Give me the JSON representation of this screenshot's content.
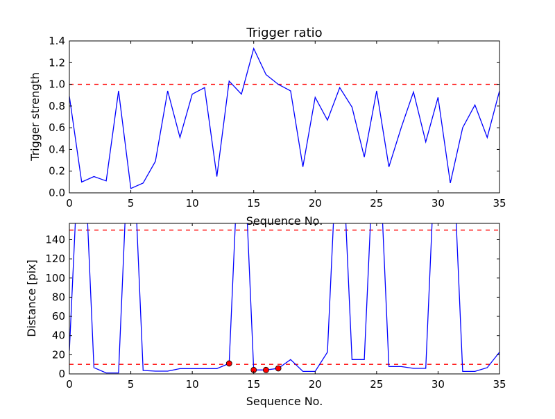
{
  "chart_data": [
    {
      "type": "line",
      "title": "Trigger ratio",
      "xlabel": "Sequence No.",
      "ylabel": "Trigger strength",
      "xlim": [
        0,
        35
      ],
      "ylim": [
        0,
        1.4
      ],
      "xticks": [
        0,
        5,
        10,
        15,
        20,
        25,
        30,
        35
      ],
      "yticks": [
        0.0,
        0.2,
        0.4,
        0.6,
        0.8,
        1.0,
        1.2,
        1.4
      ],
      "ytick_labels": [
        "0.0",
        "0.2",
        "0.4",
        "0.6",
        "0.8",
        "1.0",
        "1.2",
        "1.4"
      ],
      "series": [
        {
          "name": "trigger strength",
          "color": "#0000ff",
          "x": [
            0,
            1,
            2,
            3,
            4,
            5,
            6,
            7,
            8,
            9,
            10,
            11,
            12,
            13,
            14,
            15,
            16,
            17,
            18,
            19,
            20,
            21,
            22,
            23,
            24,
            25,
            26,
            27,
            28,
            29,
            30,
            31,
            32,
            33,
            34,
            35
          ],
          "values": [
            0.89,
            0.1,
            0.15,
            0.11,
            0.94,
            0.04,
            0.09,
            0.29,
            0.94,
            0.51,
            0.91,
            0.97,
            0.15,
            1.03,
            0.91,
            1.33,
            1.09,
            1.0,
            0.94,
            0.24,
            0.88,
            0.67,
            0.97,
            0.79,
            0.33,
            0.94,
            0.24,
            0.6,
            0.93,
            0.47,
            0.88,
            0.09,
            0.6,
            0.81,
            0.51,
            0.94
          ]
        }
      ],
      "hlines": [
        {
          "value": 1.0,
          "color": "#ff0000",
          "style": "dashed"
        }
      ],
      "grid": false
    },
    {
      "type": "line",
      "title": "",
      "xlabel": "Sequence No.",
      "ylabel": "Distance [pix]",
      "xlim": [
        0,
        35
      ],
      "ylim": [
        0,
        157
      ],
      "xticks": [
        0,
        5,
        10,
        15,
        20,
        25,
        30,
        35
      ],
      "yticks": [
        0,
        20,
        40,
        60,
        80,
        100,
        120,
        140
      ],
      "ytick_labels": [
        "0",
        "20",
        "40",
        "60",
        "80",
        "100",
        "120",
        "140"
      ],
      "series": [
        {
          "name": "distance",
          "color": "#0000ff",
          "x": [
            0,
            1,
            2,
            3,
            4,
            5,
            6,
            7,
            8,
            9,
            10,
            11,
            12,
            13,
            14,
            15,
            16,
            17,
            18,
            19,
            20,
            21,
            22,
            23,
            24,
            25,
            26,
            27,
            28,
            29,
            30,
            31,
            32,
            33,
            34,
            35
          ],
          "values": [
            24,
            300,
            6.5,
            1,
            1,
            300,
            3.6,
            2.9,
            2.9,
            5.5,
            5.5,
            5.5,
            5.5,
            10.9,
            300,
            4.1,
            4.1,
            5.8,
            15,
            2.6,
            2.6,
            22.7,
            300,
            15,
            15,
            300,
            7.7,
            7.7,
            5.8,
            5.8,
            300,
            300,
            2.6,
            2.6,
            6.5,
            22.7
          ]
        }
      ],
      "markers": {
        "color": "#ff0000",
        "x": [
          13,
          15,
          16,
          17
        ],
        "values": [
          10.9,
          4.1,
          4.1,
          5.8
        ]
      },
      "hlines": [
        {
          "value": 10,
          "color": "#ff0000",
          "style": "dashed"
        },
        {
          "value": 150,
          "color": "#ff0000",
          "style": "dashed"
        }
      ],
      "grid": false
    }
  ]
}
